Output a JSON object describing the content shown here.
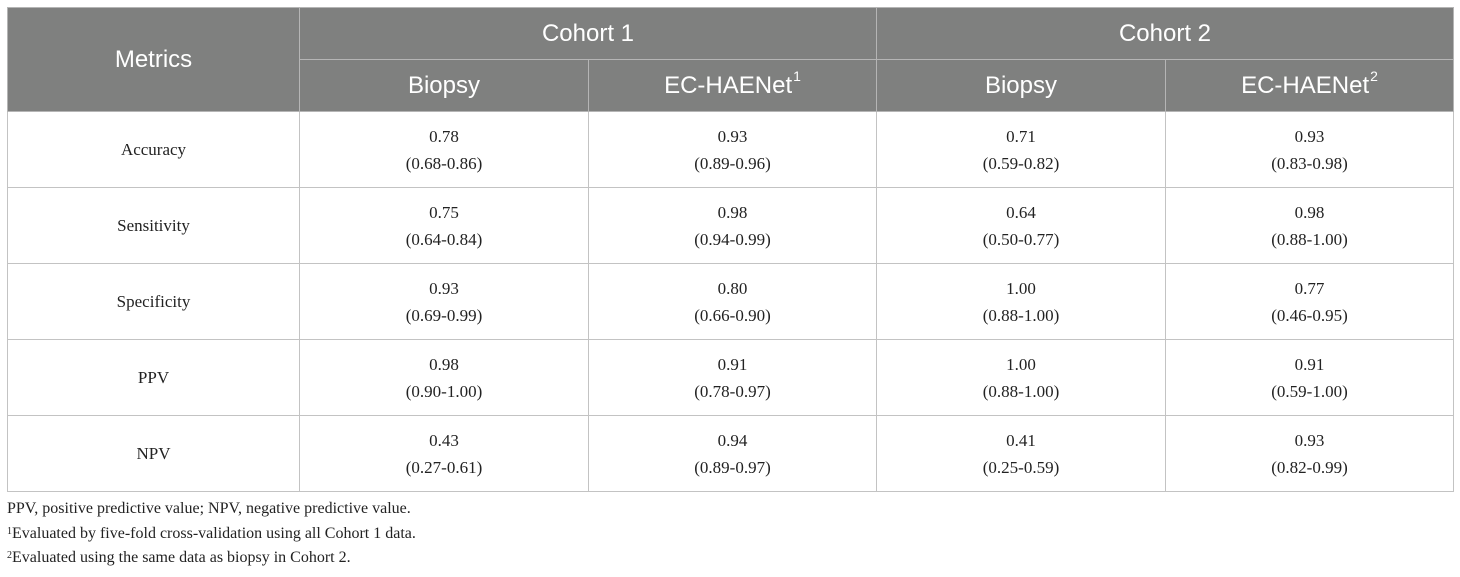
{
  "table": {
    "metrics_header": "Metrics",
    "cohort1_header": "Cohort 1",
    "cohort2_header": "Cohort 2",
    "subheaders": [
      {
        "label": "Biopsy",
        "sup": ""
      },
      {
        "label": "EC-HAENet",
        "sup": "1"
      },
      {
        "label": "Biopsy",
        "sup": ""
      },
      {
        "label": "EC-HAENet",
        "sup": "2"
      }
    ],
    "rows": [
      {
        "metric": "Accuracy",
        "cells": [
          {
            "value": "0.78",
            "ci": "(0.68-0.86)"
          },
          {
            "value": "0.93",
            "ci": "(0.89-0.96)"
          },
          {
            "value": "0.71",
            "ci": "(0.59-0.82)"
          },
          {
            "value": "0.93",
            "ci": "(0.83-0.98)"
          }
        ]
      },
      {
        "metric": "Sensitivity",
        "cells": [
          {
            "value": "0.75",
            "ci": "(0.64-0.84)"
          },
          {
            "value": "0.98",
            "ci": "(0.94-0.99)"
          },
          {
            "value": "0.64",
            "ci": "(0.50-0.77)"
          },
          {
            "value": "0.98",
            "ci": "(0.88-1.00)"
          }
        ]
      },
      {
        "metric": "Specificity",
        "cells": [
          {
            "value": "0.93",
            "ci": "(0.69-0.99)"
          },
          {
            "value": "0.80",
            "ci": "(0.66-0.90)"
          },
          {
            "value": "1.00",
            "ci": "(0.88-1.00)"
          },
          {
            "value": "0.77",
            "ci": "(0.46-0.95)"
          }
        ]
      },
      {
        "metric": "PPV",
        "cells": [
          {
            "value": "0.98",
            "ci": "(0.90-1.00)"
          },
          {
            "value": "0.91",
            "ci": "(0.78-0.97)"
          },
          {
            "value": "1.00",
            "ci": "(0.88-1.00)"
          },
          {
            "value": "0.91",
            "ci": "(0.59-1.00)"
          }
        ]
      },
      {
        "metric": "NPV",
        "cells": [
          {
            "value": "0.43",
            "ci": "(0.27-0.61)"
          },
          {
            "value": "0.94",
            "ci": "(0.89-0.97)"
          },
          {
            "value": "0.41",
            "ci": "(0.25-0.59)"
          },
          {
            "value": "0.93",
            "ci": "(0.82-0.99)"
          }
        ]
      }
    ]
  },
  "footnotes": {
    "abbreviations": "PPV, positive predictive value; NPV, negative predictive value.",
    "note1_mark": "1",
    "note1_text": "Evaluated by five-fold cross-validation using all Cohort 1 data.",
    "note2_mark": "2",
    "note2_text": "Evaluated using the same data as biopsy in Cohort 2."
  }
}
